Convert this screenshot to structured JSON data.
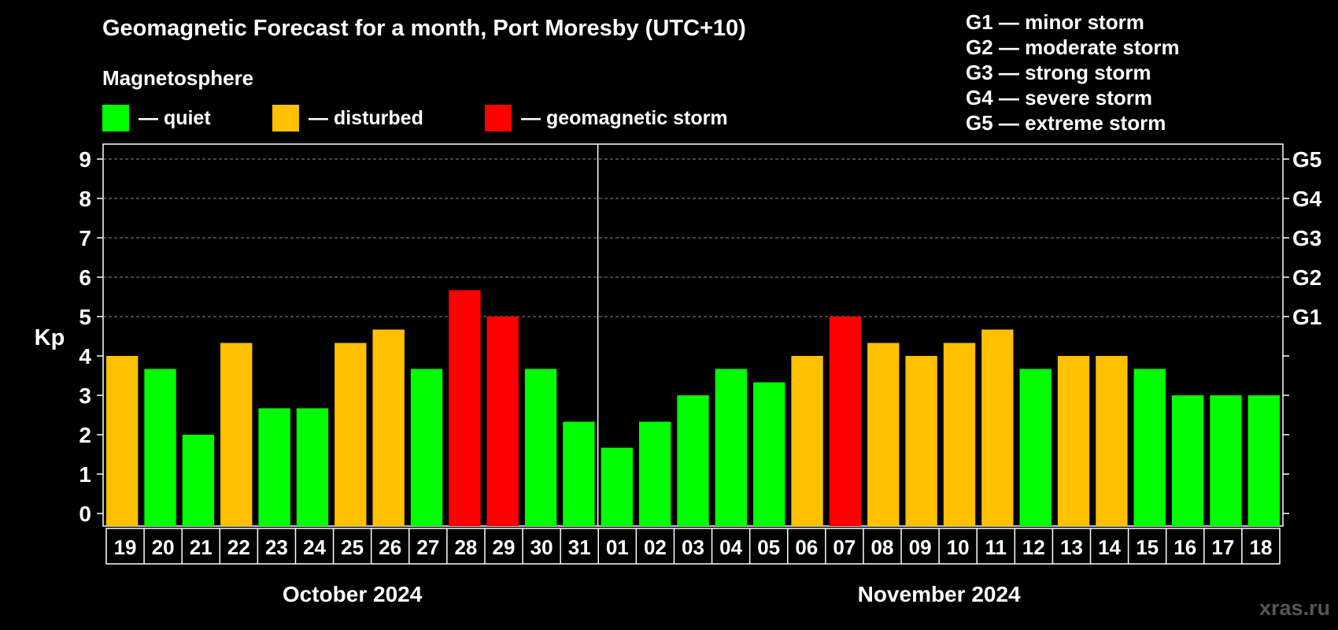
{
  "title": "Geomagnetic Forecast for a month, Port Moresby (UTC+10)",
  "magnetosphere": {
    "title": "Magnetosphere",
    "items": [
      {
        "label": "— quiet",
        "color": "#00ff00"
      },
      {
        "label": "— disturbed",
        "color": "#ffc000"
      },
      {
        "label": "— geomagnetic storm",
        "color": "#ff0000"
      }
    ]
  },
  "g_scale": [
    {
      "label": "G1 — minor storm"
    },
    {
      "label": "G2 — moderate storm"
    },
    {
      "label": "G3 — strong storm"
    },
    {
      "label": "G4 — severe storm"
    },
    {
      "label": "G5 — extreme storm"
    }
  ],
  "watermark": "xras.ru",
  "colors": {
    "quiet": "#00ff00",
    "disturbed": "#ffc000",
    "storm": "#ff0000",
    "grid": "#888888",
    "axis": "#ffffff"
  },
  "chart_data": {
    "type": "bar",
    "title": "Geomagnetic Forecast for a month, Port Moresby (UTC+10)",
    "ylabel": "Kp",
    "ylim": [
      0,
      9
    ],
    "yticks": [
      "0",
      "1",
      "2",
      "3",
      "4",
      "5",
      "6",
      "7",
      "8",
      "9"
    ],
    "right_ticks": [
      {
        "value": 5,
        "label": "G1"
      },
      {
        "value": 6,
        "label": "G2"
      },
      {
        "value": 7,
        "label": "G3"
      },
      {
        "value": 8,
        "label": "G4"
      },
      {
        "value": 9,
        "label": "G5"
      }
    ],
    "grid": "horizontal dashed at integer Kp levels 5 to 9",
    "months": [
      {
        "label": "October 2024",
        "days": 13
      },
      {
        "label": "November 2024",
        "days": 18
      }
    ],
    "categories": [
      "19",
      "20",
      "21",
      "22",
      "23",
      "24",
      "25",
      "26",
      "27",
      "28",
      "29",
      "30",
      "31",
      "01",
      "02",
      "03",
      "04",
      "05",
      "06",
      "07",
      "08",
      "09",
      "10",
      "11",
      "12",
      "13",
      "14",
      "15",
      "16",
      "17",
      "18"
    ],
    "values": [
      4.0,
      3.67,
      2.0,
      4.33,
      2.67,
      2.67,
      4.33,
      4.67,
      3.67,
      5.67,
      5.0,
      3.67,
      2.33,
      1.67,
      2.33,
      3.0,
      3.67,
      3.33,
      4.0,
      5.0,
      4.33,
      4.0,
      4.33,
      4.67,
      3.67,
      4.0,
      4.0,
      3.67,
      3.0,
      3.0,
      3.0
    ],
    "levels": [
      "disturbed",
      "quiet",
      "quiet",
      "disturbed",
      "quiet",
      "quiet",
      "disturbed",
      "disturbed",
      "quiet",
      "storm",
      "storm",
      "quiet",
      "quiet",
      "quiet",
      "quiet",
      "quiet",
      "quiet",
      "quiet",
      "disturbed",
      "storm",
      "disturbed",
      "disturbed",
      "disturbed",
      "disturbed",
      "quiet",
      "disturbed",
      "disturbed",
      "quiet",
      "quiet",
      "quiet",
      "quiet"
    ]
  }
}
